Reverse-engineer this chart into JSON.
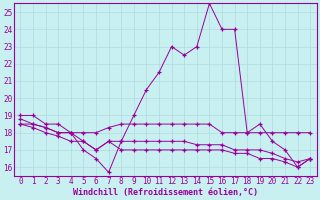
{
  "xlabel": "Windchill (Refroidissement éolien,°C)",
  "background_color": "#c8f0f0",
  "grid_color": "#b0d8e0",
  "line_color": "#990099",
  "xlim": [
    -0.5,
    23.5
  ],
  "ylim": [
    15.5,
    25.5
  ],
  "xticks": [
    0,
    1,
    2,
    3,
    4,
    5,
    6,
    7,
    8,
    9,
    10,
    11,
    12,
    13,
    14,
    15,
    16,
    17,
    18,
    19,
    20,
    21,
    22,
    23
  ],
  "yticks": [
    16,
    17,
    18,
    19,
    20,
    21,
    22,
    23,
    24,
    25
  ],
  "series": {
    "line1": [
      19.0,
      19.0,
      18.5,
      18.5,
      18.0,
      17.0,
      16.5,
      15.7,
      17.5,
      19.0,
      20.5,
      21.5,
      23.0,
      22.5,
      23.0,
      25.5,
      24.0,
      24.0,
      18.0,
      18.5,
      17.5,
      17.0,
      16.0,
      16.5
    ],
    "line2": [
      18.8,
      18.5,
      18.3,
      18.0,
      18.0,
      18.0,
      18.0,
      18.3,
      18.5,
      18.5,
      18.5,
      18.5,
      18.5,
      18.5,
      18.5,
      18.5,
      18.0,
      18.0,
      18.0,
      18.0,
      18.0,
      18.0,
      18.0,
      18.0
    ],
    "line3": [
      18.5,
      18.3,
      18.0,
      17.8,
      17.5,
      17.5,
      17.0,
      17.5,
      17.5,
      17.5,
      17.5,
      17.5,
      17.5,
      17.5,
      17.3,
      17.3,
      17.3,
      17.0,
      17.0,
      17.0,
      16.8,
      16.5,
      16.3,
      16.5
    ],
    "line4": [
      18.5,
      18.5,
      18.3,
      18.0,
      18.0,
      17.5,
      17.0,
      17.5,
      17.0,
      17.0,
      17.0,
      17.0,
      17.0,
      17.0,
      17.0,
      17.0,
      17.0,
      16.8,
      16.8,
      16.5,
      16.5,
      16.3,
      16.0,
      16.5
    ]
  }
}
